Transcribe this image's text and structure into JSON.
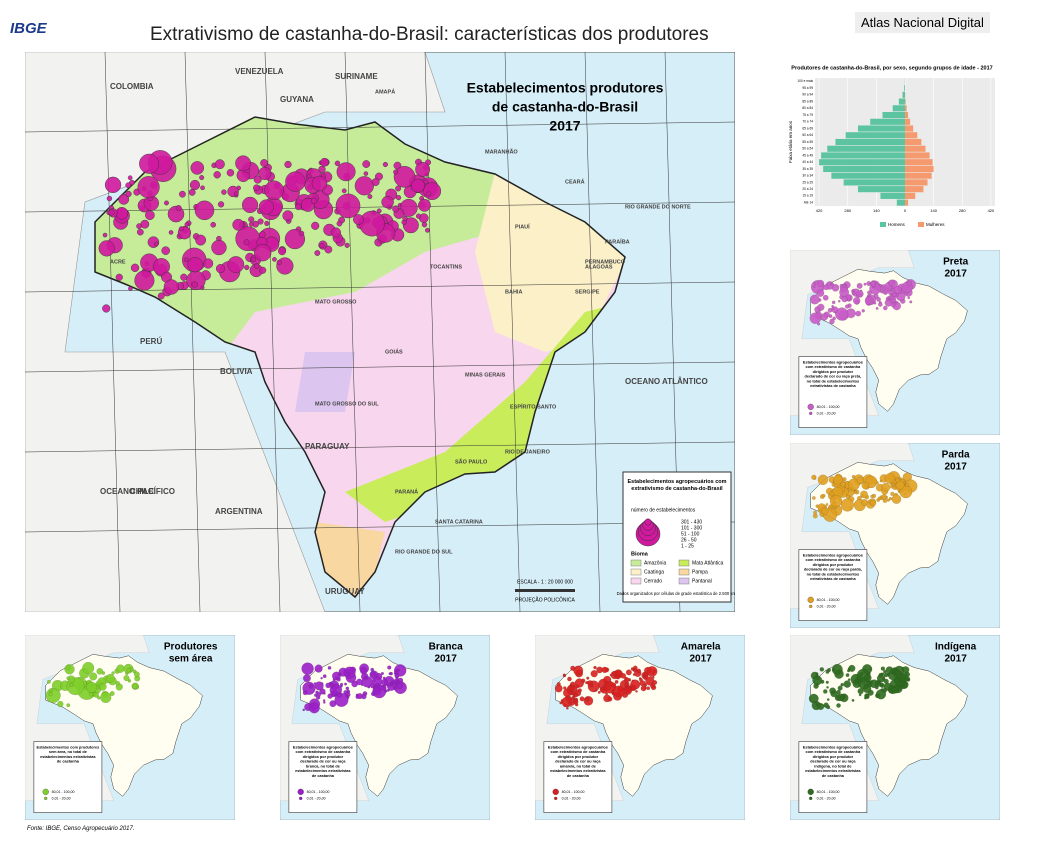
{
  "header": {
    "logo": "IBGE",
    "title": "Extrativismo de castanha-do-Brasil: características dos produtores",
    "atlas": "Atlas Nacional Digital"
  },
  "main_map": {
    "title_lines": [
      "Estabelecimentos produtores",
      "de castanha-do-Brasil",
      "2017"
    ],
    "labels": [
      "VENEZUELA",
      "COLOMBIA",
      "GUYANA",
      "SURINAME",
      "PERÚ",
      "BOLIVIA",
      "PARAGUAY",
      "ARGENTINA",
      "CHILE",
      "URUGUAY",
      "OCEANO PACÍFICO",
      "OCEANO ATLÂNTICO",
      "ACRE",
      "AMAPÁ",
      "MATO GROSSO",
      "TOCANTINS",
      "BAHIA",
      "GOIÁS",
      "MINAS GERAIS",
      "MATO GROSSO DO SUL",
      "SÃO PAULO",
      "PARANÁ",
      "SANTA CATARINA",
      "RIO GRANDE DO SUL",
      "ESPÍRITO SANTO",
      "RIO DE JANEIRO",
      "PIAUÍ",
      "CEARÁ",
      "MARANHÃO",
      "PERNAMBUCO",
      "ALAGOAS",
      "SERGIPE",
      "PARAÍBA",
      "RIO GRANDE DO NORTE"
    ],
    "legend": {
      "title": "Estabelecimentos agropecuários com extrativismo de castanha-do-Brasil",
      "size_title": "número de estabelecimentos",
      "sizes": [
        "301 - 430",
        "101 - 300",
        "51 - 100",
        "26 - 50",
        "1 - 25"
      ],
      "biome_title": "Bioma",
      "biomes": [
        {
          "name": "Amazônia",
          "color": "#c6ec9a"
        },
        {
          "name": "Mata Atlântica",
          "color": "#c9ec5a"
        },
        {
          "name": "Caatinga",
          "color": "#fbf0c8"
        },
        {
          "name": "Pampa",
          "color": "#f8d7a0"
        },
        {
          "name": "Cerrado",
          "color": "#f8d6ee"
        },
        {
          "name": "Pantanal",
          "color": "#dcc6f0"
        }
      ],
      "note": "Dados organizados por células de grade estatística de 2.500 km²"
    },
    "scale": "ESCALA - 1 : 20 000 000",
    "projection": "PROJEÇÃO POLICÔNICA",
    "symbol_color": "#d0199f"
  },
  "pyramid": {
    "type": "bar",
    "title": "Produtores de castanha-do-Brasil, por sexo, segundo grupos de idade - 2017",
    "y_label": "Faixa etária em anos",
    "categories": [
      "Até 14",
      "15 a 19",
      "20 a 24",
      "25 a 29",
      "30 a 34",
      "35 a 39",
      "40 a 44",
      "45 a 49",
      "50 a 54",
      "55 a 59",
      "60 a 64",
      "65 a 69",
      "70 a 74",
      "75 a 79",
      "80 a 84",
      "85 a 89",
      "90 a 94",
      "95 a 99",
      "100 e mais"
    ],
    "series": [
      {
        "name": "Homens",
        "color": "#5cc4a0",
        "values": [
          40,
          120,
          230,
          300,
          360,
          400,
          420,
          410,
          380,
          340,
          290,
          230,
          170,
          110,
          60,
          30,
          12,
          4,
          1
        ]
      },
      {
        "name": "Mulheres",
        "color": "#f59a6e",
        "values": [
          15,
          50,
          90,
          110,
          130,
          140,
          135,
          120,
          100,
          80,
          60,
          40,
          25,
          15,
          8,
          3,
          1,
          0,
          0
        ]
      }
    ],
    "xlim": [
      -440,
      440
    ],
    "xticks": [
      {
        "value": -420,
        "label": "420"
      },
      {
        "value": -280,
        "label": "280"
      },
      {
        "value": -140,
        "label": "140"
      },
      0,
      140,
      280,
      420
    ]
  },
  "small_maps": [
    {
      "title": "Preta",
      "year": "2017",
      "color": "#c85cc8",
      "legend": "Estabelecimentos agropecuários com extrativismo de castanha dirigidos por produtor declarado de cor ou raça preta, no total de estabelecimentos extrativistas de castanha",
      "classes": [
        "80,01 - 100,00",
        "0,01 - 20,00"
      ]
    },
    {
      "title": "Parda",
      "year": "2017",
      "color": "#e0a020",
      "legend": "Estabelecimentos agropecuários com extrativismo de castanha dirigidos por produtor declarado de cor ou raça parda, no total de estabelecimentos extrativistas de castanha",
      "classes": [
        "80,01 - 100,00",
        "0,01 - 20,00"
      ]
    },
    {
      "title": "Indígena",
      "year": "2017",
      "color": "#2e6b1e",
      "legend": "Estabelecimentos agropecuários com extrativismo de castanha dirigidos por produtor declarado de cor ou raça indígena, no total de estabelecimentos extrativistas de castanha",
      "classes": [
        "80,01 - 100,00",
        "0,01 - 20,00"
      ]
    },
    {
      "title": "Produtores",
      "year": "sem área",
      "color": "#7fcf2a",
      "legend": "Estabelecimentos com produtores sem área, no total de estabelecimentos extrativistas de castanha",
      "classes": [
        "80,01 - 100,00",
        "0,01 - 20,00"
      ]
    },
    {
      "title": "Branca",
      "year": "2017",
      "color": "#9b1fc8",
      "legend": "Estabelecimentos agropecuários com extrativismo de castanha dirigidos por produtor declarado de cor ou raça branca, no total de estabelecimentos extrativistas de castanha",
      "classes": [
        "80,01 - 100,00",
        "0,01 - 20,00"
      ]
    },
    {
      "title": "Amarela",
      "year": "2017",
      "color": "#d82020",
      "legend": "Estabelecimentos agropecuários com extrativismo de castanha dirigidos por produtor declarado de cor ou raça amarela, no total de estabelecimentos extrativistas de castanha",
      "classes": [
        "80,01 - 100,00",
        "0,01 - 20,00"
      ]
    }
  ],
  "source": "Fonte: IBGE, Censo Agropecuário 2017."
}
